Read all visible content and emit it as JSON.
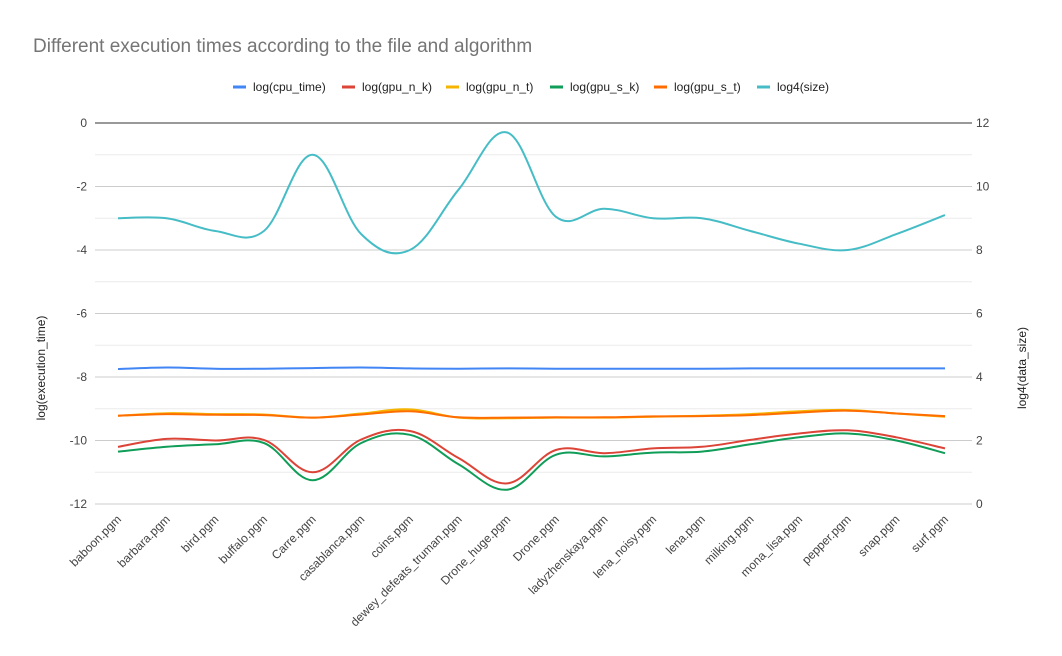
{
  "chart_data": {
    "type": "line",
    "title": "Different execution times according to the file and algorithm",
    "categories": [
      "baboon.pgm",
      "barbara.pgm",
      "bird.pgm",
      "buffalo.pgm",
      "Carre.pgm",
      "casablanca.pgm",
      "coins.pgm",
      "dewey_defeats_truman.pgm",
      "Drone_huge.pgm",
      "Drone.pgm",
      "ladyzhenskaya.pgm",
      "lena_noisy.pgm",
      "lena.pgm",
      "milking.pgm",
      "mona_lisa.pgm",
      "pepper.pgm",
      "snap.pgm",
      "surf.pgm"
    ],
    "ylabel_left": "log(execution_time)",
    "ylabel_right": "log4(data_size)",
    "ylim_left": [
      -12,
      0
    ],
    "ylim_right": [
      0,
      12
    ],
    "yticks_left": [
      0,
      -2,
      -4,
      -6,
      -8,
      -10,
      -12
    ],
    "yticks_right": [
      12,
      10,
      8,
      6,
      4,
      2,
      0
    ],
    "legend_position": "top",
    "grid": true,
    "series": [
      {
        "name": "log(cpu_time)",
        "axis": "left",
        "color": "#4285f4",
        "values": [
          -7.75,
          -7.7,
          -7.74,
          -7.74,
          -7.72,
          -7.7,
          -7.73,
          -7.74,
          -7.73,
          -7.74,
          -7.74,
          -7.74,
          -7.74,
          -7.73,
          -7.73,
          -7.73,
          -7.73,
          -7.73
        ]
      },
      {
        "name": "log(gpu_n_k)",
        "axis": "left",
        "color": "#db4437",
        "values": [
          -10.2,
          -9.95,
          -10.0,
          -9.98,
          -11.0,
          -9.97,
          -9.7,
          -10.55,
          -11.35,
          -10.3,
          -10.4,
          -10.25,
          -10.2,
          -9.98,
          -9.78,
          -9.68,
          -9.9,
          -10.25
        ]
      },
      {
        "name": "log(gpu_n_t)",
        "axis": "left",
        "color": "#f4b400",
        "values": [
          -9.22,
          -9.14,
          -9.17,
          -9.18,
          -9.28,
          -9.15,
          -9.02,
          -9.28,
          -9.3,
          -9.28,
          -9.28,
          -9.25,
          -9.22,
          -9.17,
          -9.08,
          -9.04,
          -9.15,
          -9.25
        ]
      },
      {
        "name": "log(gpu_s_k)",
        "axis": "left",
        "color": "#0f9d58",
        "values": [
          -10.35,
          -10.2,
          -10.12,
          -10.08,
          -11.25,
          -10.08,
          -9.82,
          -10.75,
          -11.55,
          -10.45,
          -10.5,
          -10.38,
          -10.35,
          -10.12,
          -9.9,
          -9.78,
          -10.0,
          -10.4
        ]
      },
      {
        "name": "log(gpu_s_t)",
        "axis": "left",
        "color": "#ff6d00",
        "values": [
          -9.22,
          -9.17,
          -9.19,
          -9.2,
          -9.28,
          -9.18,
          -9.08,
          -9.27,
          -9.28,
          -9.27,
          -9.27,
          -9.24,
          -9.23,
          -9.2,
          -9.12,
          -9.06,
          -9.15,
          -9.23
        ]
      },
      {
        "name": "log4(size)",
        "axis": "right",
        "color": "#46bdc6",
        "values": [
          9.0,
          9.0,
          8.6,
          8.6,
          11.0,
          8.5,
          8.0,
          9.9,
          11.7,
          9.05,
          9.3,
          9.0,
          9.0,
          8.6,
          8.2,
          8.0,
          8.5,
          9.1
        ]
      }
    ]
  }
}
